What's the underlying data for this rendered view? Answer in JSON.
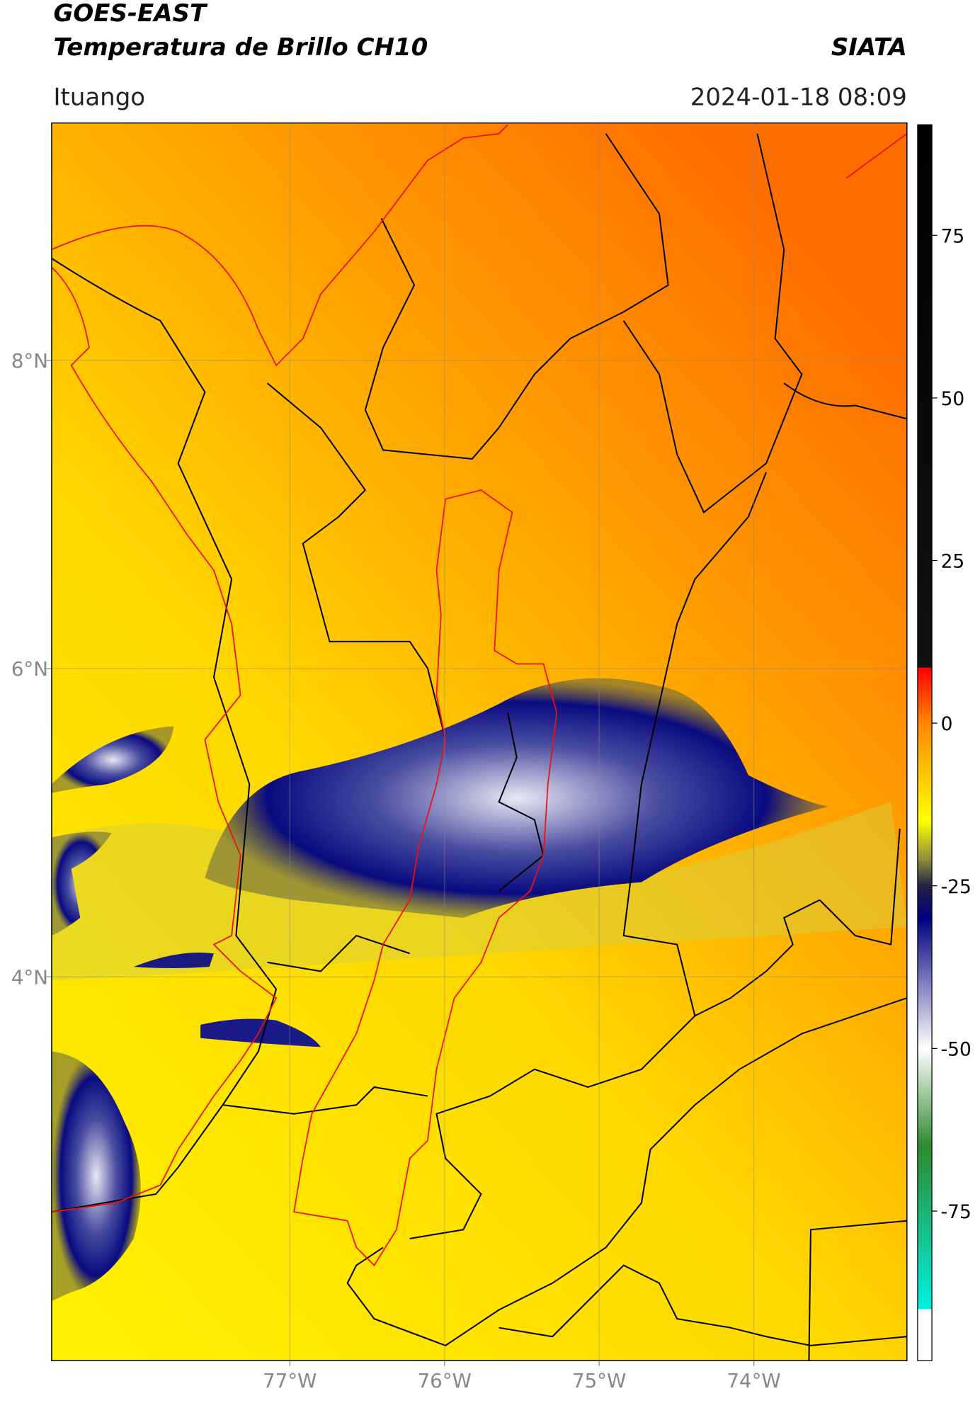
{
  "map": {
    "title": "GOES-EAST",
    "subtitle": "Temperatura de Brillo CH10",
    "source": "SIATA",
    "location": "Ituango",
    "datetime": "2024-01-18 08:09",
    "xlim": [
      -78.54,
      -73.01
    ],
    "ylim": [
      1.51,
      9.54
    ],
    "xticks": [
      {
        "value": -77,
        "label": "77°W"
      },
      {
        "value": -76,
        "label": "76°W"
      },
      {
        "value": -75,
        "label": "75°W"
      },
      {
        "value": -74,
        "label": "74°W"
      }
    ],
    "yticks": [
      {
        "value": 8,
        "label": "8°N"
      },
      {
        "value": 6,
        "label": "6°N"
      },
      {
        "value": 4,
        "label": "4°N"
      }
    ],
    "grid": true,
    "colorbar": {
      "clim": [
        -98,
        92
      ],
      "ticks": [
        75,
        50,
        25,
        0,
        -25,
        -50,
        -75
      ],
      "stops": [
        {
          "value": 92,
          "color": "#000000"
        },
        {
          "value": 8.6,
          "color": "#111111"
        },
        {
          "value": 8.5,
          "color": "#ff0000"
        },
        {
          "value": 0,
          "color": "#ff8800"
        },
        {
          "value": -15,
          "color": "#ffff00"
        },
        {
          "value": -21,
          "color": "#8c8c3c"
        },
        {
          "value": -25,
          "color": "#222244"
        },
        {
          "value": -30,
          "color": "#000080"
        },
        {
          "value": -50,
          "color": "#ffffff"
        },
        {
          "value": -65,
          "color": "#2e8b2e"
        },
        {
          "value": -90,
          "color": "#00f0e0"
        },
        {
          "value": -90.1,
          "color": "#ffffff"
        },
        {
          "value": -98,
          "color": "#ffffff"
        }
      ]
    }
  }
}
